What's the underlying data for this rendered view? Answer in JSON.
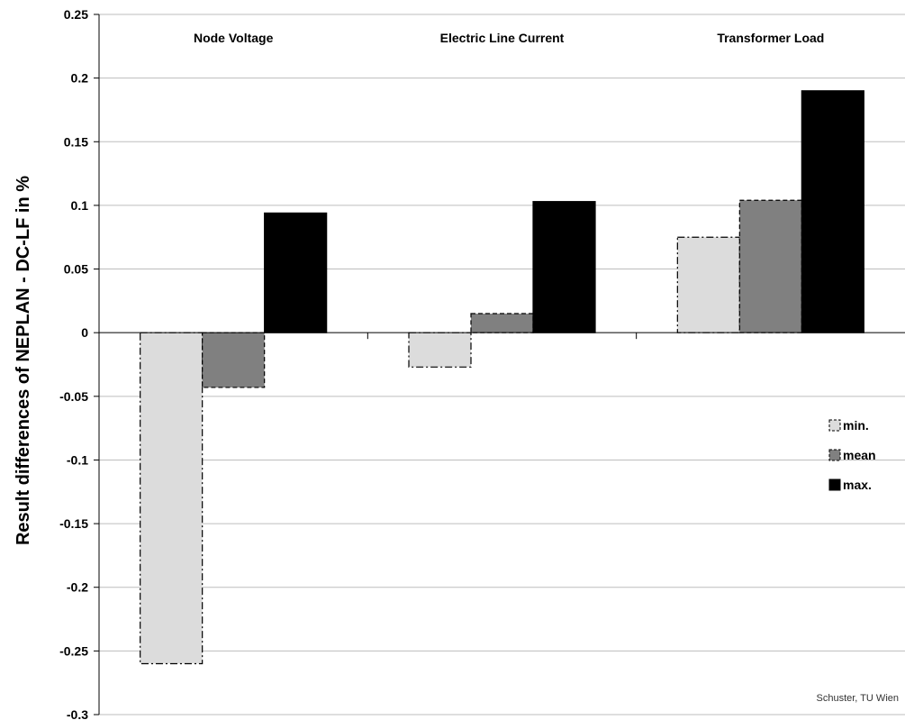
{
  "chart_data": {
    "type": "bar",
    "categories": [
      "Node Voltage",
      "Electric Line Current",
      "Transformer Load"
    ],
    "series": [
      {
        "name": "min.",
        "values": [
          -0.26,
          -0.027,
          0.075
        ],
        "color": "#dcdcdc",
        "border": "dashdot"
      },
      {
        "name": "mean",
        "values": [
          -0.043,
          0.015,
          0.104
        ],
        "color": "#808080",
        "border": "dashed"
      },
      {
        "name": "max.",
        "values": [
          0.094,
          0.103,
          0.19
        ],
        "color": "#000000",
        "border": "solid"
      }
    ],
    "ylabel": "Result differences of NEPLAN - DC-LF in %",
    "xlabel": "",
    "ylim": [
      -0.3,
      0.25
    ],
    "yticks": [
      0.25,
      0.2,
      0.15,
      0.1,
      0.05,
      0,
      -0.05,
      -0.1,
      -0.15,
      -0.2,
      -0.25,
      -0.3
    ],
    "ytick_labels": [
      "0.25",
      "0.2",
      "0.15",
      "0.1",
      "0.05",
      "0",
      "-0.05",
      "-0.1",
      "-0.15",
      "-0.2",
      "-0.25",
      "-0.3"
    ],
    "grid": true,
    "legend": "right",
    "category_label_position": "top",
    "credit": "Schuster, TU Wien"
  }
}
